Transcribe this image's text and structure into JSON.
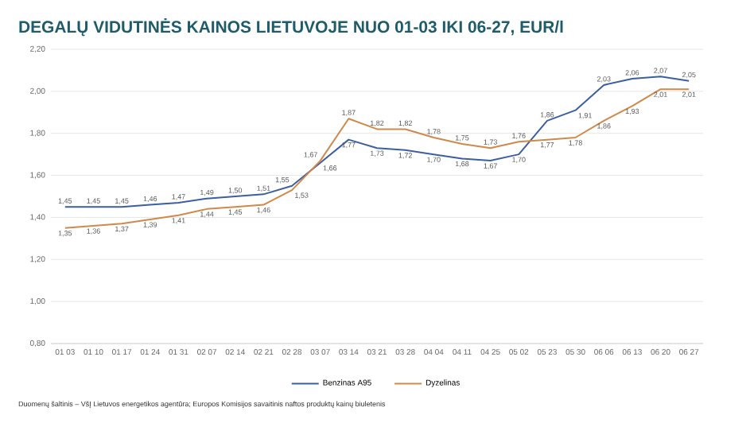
{
  "chart_data": {
    "type": "line",
    "title": "DEGALŲ VIDUTINĖS KAINOS LIETUVOJE NUO 01-03 IKI 06-27, EUR/l",
    "categories": [
      "01 03",
      "01 10",
      "01 17",
      "01 24",
      "01 31",
      "02 07",
      "02 14",
      "02 21",
      "02 28",
      "03 07",
      "03 14",
      "03 21",
      "03 28",
      "04 04",
      "04 11",
      "04 25",
      "05 02",
      "05 23",
      "05 30",
      "06 06",
      "06 13",
      "06 20",
      "06 27"
    ],
    "series": [
      {
        "name": "Benzinas A95",
        "color": "#3b5fa0",
        "values": [
          1.45,
          1.45,
          1.45,
          1.46,
          1.47,
          1.49,
          1.5,
          1.51,
          1.55,
          1.66,
          1.77,
          1.73,
          1.72,
          1.7,
          1.68,
          1.67,
          1.7,
          1.86,
          1.91,
          2.03,
          2.06,
          2.07,
          2.05
        ],
        "value_labels": [
          "1,45",
          "1,45",
          "1,45",
          "1,46",
          "1,47",
          "1,49",
          "1,50",
          "1,51",
          "1,55",
          "1,66",
          "1,77",
          "1,73",
          "1,72",
          "1,70",
          "1,68",
          "1,67",
          "1,70",
          "1,86",
          "1,91",
          "2,03",
          "2,06",
          "2,07",
          "2,05"
        ]
      },
      {
        "name": "Dyzelinas",
        "color": "#d0894a",
        "values": [
          1.35,
          1.36,
          1.37,
          1.39,
          1.41,
          1.44,
          1.45,
          1.46,
          1.53,
          1.67,
          1.87,
          1.82,
          1.82,
          1.78,
          1.75,
          1.73,
          1.76,
          1.77,
          1.78,
          1.86,
          1.93,
          2.01,
          2.01
        ],
        "value_labels": [
          "1,35",
          "1,36",
          "1,37",
          "1,39",
          "1,41",
          "1,44",
          "1,45",
          "1,46",
          "1,53",
          "1,67",
          "1,87",
          "1,82",
          "1,82",
          "1,78",
          "1,75",
          "1,73",
          "1,76",
          "1,77",
          "1,78",
          "1,86",
          "1,93",
          "2,01",
          "2,01"
        ]
      }
    ],
    "ylim": [
      0.8,
      2.2
    ],
    "yticks": [
      {
        "value": 0.8,
        "label": "0,80"
      },
      {
        "value": 1.0,
        "label": "1,00"
      },
      {
        "value": 1.2,
        "label": "1,20"
      },
      {
        "value": 1.4,
        "label": "1,40"
      },
      {
        "value": 1.6,
        "label": "1,60"
      },
      {
        "value": 1.8,
        "label": "1,80"
      },
      {
        "value": 2.0,
        "label": "2,00"
      },
      {
        "value": 2.2,
        "label": "2,20"
      }
    ],
    "grid": "y",
    "legend": "bottom",
    "marker": "none",
    "line_style": "solid",
    "annotations": [
      "Duomenų šaltinis – VšĮ Lietuvos energetikos agentūra; Europos Komisijos savaitinis naftos produktų kainų biuletenis"
    ]
  }
}
